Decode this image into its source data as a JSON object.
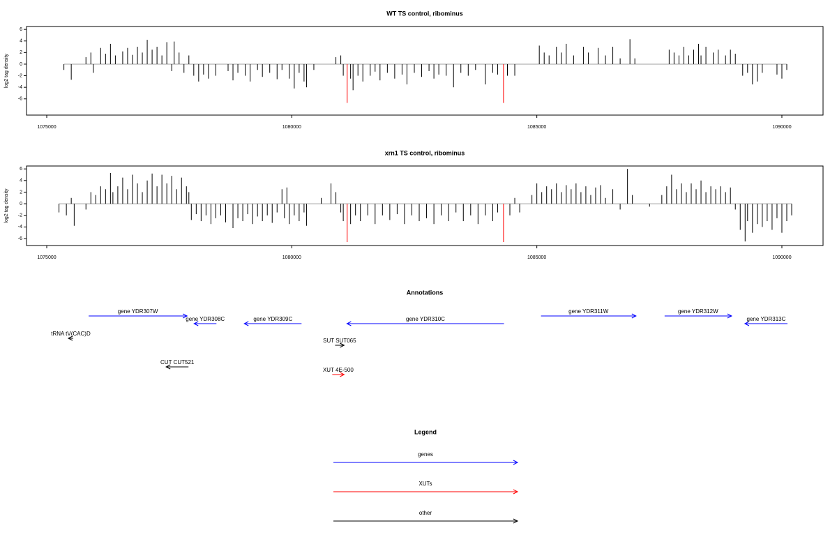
{
  "chart_data": [
    {
      "type": "bar",
      "title": "WT TS control, ribominus",
      "y_label": "log2 tag density",
      "xlim": [
        1074587,
        1090840
      ],
      "xticks": [
        1075000,
        1080000,
        1085000,
        1090000
      ],
      "ylim": [
        -8.8,
        6.5
      ],
      "yticks": [
        -6,
        -4,
        -2,
        0,
        2,
        4,
        6
      ],
      "baseline_color": "#a0a0a0",
      "series": [
        {
          "color": "#000000",
          "x": [
            1075350,
            1075500,
            1075800,
            1075900,
            1075950,
            1076100,
            1076200,
            1076300,
            1076400,
            1076550,
            1076650,
            1076750,
            1076850,
            1076950,
            1077050,
            1077150,
            1077250,
            1077350,
            1077450,
            1077550,
            1077600,
            1077700,
            1077800,
            1077900,
            1078000,
            1078100,
            1078200,
            1078300,
            1078450,
            1078700,
            1078800,
            1078900,
            1079050,
            1079150,
            1079300,
            1079400,
            1079550,
            1079700,
            1079800,
            1079950,
            1080050,
            1080150,
            1080250,
            1080300,
            1080450,
            1080900,
            1081000,
            1081050,
            1081200,
            1081250,
            1081350,
            1081450,
            1081600,
            1081700,
            1081800,
            1081950,
            1082100,
            1082250,
            1082350,
            1082500,
            1082650,
            1082800,
            1082900,
            1083000,
            1083150,
            1083300,
            1083450,
            1083600,
            1083750,
            1083950,
            1084100,
            1084200,
            1084400,
            1084550,
            1085050,
            1085150,
            1085250,
            1085400,
            1085500,
            1085600,
            1085750,
            1085950,
            1086050,
            1086250,
            1086400,
            1086550,
            1086700,
            1086900,
            1087000,
            1087700,
            1087800,
            1087900,
            1088000,
            1088100,
            1088200,
            1088300,
            1088350,
            1088450,
            1088600,
            1088700,
            1088850,
            1088950,
            1089050,
            1089200,
            1089300,
            1089400,
            1089500,
            1089600,
            1089900,
            1090000,
            1090100
          ],
          "values": [
            -1.0,
            -2.7,
            1.2,
            2.0,
            -1.5,
            2.8,
            1.8,
            3.5,
            1.5,
            2.2,
            2.8,
            1.6,
            3.0,
            2.0,
            4.2,
            2.5,
            3.0,
            1.5,
            3.8,
            -1.2,
            3.9,
            2.0,
            -1.5,
            1.5,
            -2.0,
            -3.0,
            -1.8,
            -2.5,
            -2.0,
            -1.2,
            -2.8,
            -1.5,
            -2.0,
            -3.0,
            -1.0,
            -2.2,
            -1.5,
            -2.6,
            -1.0,
            -2.5,
            -4.2,
            -1.5,
            -3.0,
            -4.0,
            -1.0,
            1.2,
            1.5,
            -2.0,
            -2.5,
            -4.5,
            -2.0,
            -3.0,
            -2.0,
            -1.3,
            -2.8,
            -1.5,
            -2.5,
            -1.8,
            -3.5,
            -1.5,
            -2.2,
            -1.2,
            -2.5,
            -1.8,
            -2.0,
            -4.0,
            -1.5,
            -2.0,
            -1.0,
            -3.5,
            -1.5,
            -1.8,
            -2.0,
            -2.0,
            3.2,
            2.0,
            1.5,
            3.0,
            2.0,
            3.5,
            1.5,
            3.0,
            2.0,
            2.8,
            1.5,
            3.0,
            1.0,
            4.3,
            1.0,
            2.5,
            2.0,
            1.5,
            3.0,
            1.5,
            2.5,
            3.5,
            1.5,
            3.0,
            2.0,
            2.5,
            1.5,
            2.5,
            1.8,
            -2.0,
            -1.5,
            -3.5,
            -3.0,
            -1.5,
            -1.8,
            -2.5,
            -1.0
          ]
        },
        {
          "color": "#ff0000",
          "x": [
            1081130,
            1084320
          ],
          "values": [
            -6.7,
            -6.7
          ]
        }
      ]
    },
    {
      "type": "bar",
      "title": "xrn1 TS control, ribominus",
      "y_label": "log2 tag density",
      "xlim": [
        1074587,
        1090840
      ],
      "xticks": [
        1075000,
        1080000,
        1085000,
        1090000
      ],
      "ylim": [
        -7.2,
        6.5
      ],
      "yticks": [
        -6,
        -4,
        -2,
        0,
        2,
        4,
        6
      ],
      "baseline_color": "#a0a0a0",
      "series": [
        {
          "color": "#000000",
          "x": [
            1075250,
            1075400,
            1075500,
            1075560,
            1075800,
            1075900,
            1076000,
            1076100,
            1076200,
            1076300,
            1076350,
            1076450,
            1076550,
            1076650,
            1076750,
            1076850,
            1076950,
            1077050,
            1077150,
            1077250,
            1077350,
            1077450,
            1077550,
            1077650,
            1077750,
            1077850,
            1077900,
            1077950,
            1078050,
            1078150,
            1078250,
            1078350,
            1078450,
            1078550,
            1078650,
            1078800,
            1078900,
            1079000,
            1079100,
            1079200,
            1079300,
            1079400,
            1079500,
            1079600,
            1079700,
            1079800,
            1079850,
            1079900,
            1079950,
            1080050,
            1080150,
            1080250,
            1080300,
            1080600,
            1080800,
            1080900,
            1081000,
            1081050,
            1081200,
            1081300,
            1081400,
            1081550,
            1081700,
            1081850,
            1082000,
            1082150,
            1082300,
            1082450,
            1082600,
            1082750,
            1082900,
            1083050,
            1083200,
            1083350,
            1083500,
            1083650,
            1083800,
            1083950,
            1084100,
            1084200,
            1084450,
            1084550,
            1084650,
            1084900,
            1085000,
            1085100,
            1085200,
            1085300,
            1085400,
            1085500,
            1085600,
            1085700,
            1085800,
            1085900,
            1086000,
            1086100,
            1086200,
            1086300,
            1086400,
            1086550,
            1086700,
            1086850,
            1086950,
            1087300,
            1087550,
            1087650,
            1087750,
            1087850,
            1087950,
            1088050,
            1088150,
            1088250,
            1088350,
            1088450,
            1088550,
            1088650,
            1088750,
            1088850,
            1088950,
            1089050,
            1089150,
            1089250,
            1089300,
            1089400,
            1089500,
            1089600,
            1089700,
            1089800,
            1089900,
            1090000,
            1090100,
            1090200
          ],
          "values": [
            -1.5,
            -2.0,
            1.0,
            -3.8,
            -1.0,
            2.0,
            1.5,
            3.0,
            2.5,
            5.3,
            2.0,
            3.0,
            4.5,
            2.5,
            5.0,
            3.5,
            2.0,
            4.0,
            5.2,
            3.0,
            5.0,
            3.5,
            4.8,
            2.5,
            4.5,
            3.0,
            2.0,
            -2.8,
            -1.8,
            -3.0,
            -2.0,
            -3.5,
            -2.5,
            -2.0,
            -3.2,
            -4.2,
            -2.5,
            -3.0,
            -1.8,
            -3.5,
            -2.2,
            -3.0,
            -2.0,
            -3.3,
            -1.5,
            2.5,
            -2.5,
            2.8,
            -3.5,
            -2.0,
            -3.0,
            -1.5,
            -3.8,
            1.0,
            3.5,
            2.0,
            -1.5,
            -3.0,
            -3.5,
            -2.0,
            -3.0,
            -2.0,
            -3.5,
            -2.0,
            -2.8,
            -1.8,
            -3.5,
            -2.0,
            -3.0,
            -2.5,
            -3.5,
            -2.0,
            -3.0,
            -1.5,
            -3.0,
            -2.0,
            -3.5,
            -2.0,
            -3.0,
            -1.5,
            -2.0,
            1.0,
            -1.5,
            1.5,
            3.5,
            2.0,
            3.0,
            2.5,
            3.5,
            2.0,
            3.2,
            2.5,
            3.5,
            2.0,
            3.0,
            1.5,
            2.8,
            3.2,
            1.0,
            2.5,
            -1.0,
            6.0,
            1.5,
            -0.5,
            1.5,
            3.0,
            5.0,
            2.5,
            3.5,
            2.0,
            3.5,
            2.5,
            4.0,
            2.0,
            3.0,
            2.5,
            3.0,
            2.0,
            2.8,
            -1.0,
            -4.5,
            -6.5,
            -3.0,
            -5.0,
            -3.5,
            -4.0,
            -3.0,
            -4.5,
            -2.5,
            -5.0,
            -3.0,
            -2.0
          ]
        },
        {
          "color": "#ff0000",
          "x": [
            1081130,
            1084320
          ],
          "values": [
            -6.6,
            -6.6
          ]
        }
      ]
    },
    {
      "type": "annotation",
      "title": "Annotations",
      "xlim": [
        1074587,
        1090840
      ],
      "features": [
        {
          "label": "gene YDR307W",
          "start": 1075855,
          "end": 1077863,
          "strand": "+",
          "color": "#0000ff"
        },
        {
          "label": "gene YDR308C",
          "start": 1078006,
          "end": 1078462,
          "strand": "-",
          "color": "#0000ff"
        },
        {
          "label": "gene YDR309C",
          "start": 1079031,
          "end": 1080199,
          "strand": "-",
          "color": "#0000ff"
        },
        {
          "label": "gene YDR310C",
          "start": 1081125,
          "end": 1084330,
          "strand": "-",
          "color": "#0000ff"
        },
        {
          "label": "gene YDR311W",
          "start": 1085085,
          "end": 1087023,
          "strand": "+",
          "color": "#0000ff"
        },
        {
          "label": "gene YDR312W",
          "start": 1087607,
          "end": 1088974,
          "strand": "+",
          "color": "#0000ff"
        },
        {
          "label": "gene YDR313C",
          "start": 1089245,
          "end": 1090114,
          "strand": "-",
          "color": "#0000ff"
        },
        {
          "label": "tRNA tV(CAC)D",
          "start": 1075441,
          "end": 1075541,
          "strand": "-",
          "color": "#000000"
        },
        {
          "label": "SUT SUT065",
          "start": 1080883,
          "end": 1081068,
          "strand": "+",
          "color": "#000000"
        },
        {
          "label": "CUT CUT521",
          "start": 1077436,
          "end": 1077892,
          "strand": "-",
          "color": "#000000"
        },
        {
          "label": "XUT 4E-500",
          "start": 1080826,
          "end": 1081068,
          "strand": "+",
          "color": "#ff0000"
        }
      ]
    },
    {
      "type": "legend",
      "title": "Legend",
      "entries": [
        {
          "name": "genes",
          "color": "#0000ff"
        },
        {
          "name": "XUTs",
          "color": "#ff0000"
        },
        {
          "name": "other",
          "color": "#000000"
        }
      ]
    }
  ]
}
